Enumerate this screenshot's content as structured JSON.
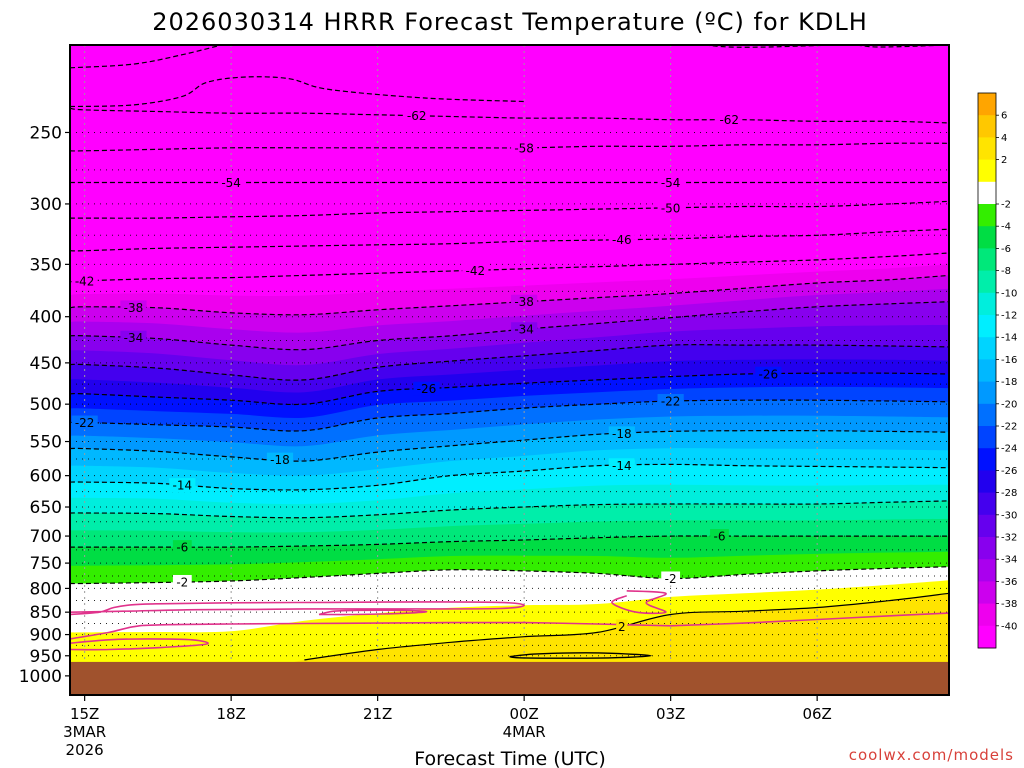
{
  "chart_data": {
    "type": "contour",
    "title": "2026030314 HRRR Forecast Temperature (ºC) for KDLH",
    "xlabel": "Forecast Time (UTC)",
    "ylabel": "",
    "credit": "coolwx.com/models",
    "y_axis": {
      "quantity": "pressure (hPa)",
      "scale": "log",
      "inverted": true,
      "range": [
        1050,
        200
      ],
      "ticks": [
        250,
        300,
        350,
        400,
        450,
        500,
        550,
        600,
        650,
        700,
        750,
        800,
        850,
        900,
        950,
        1000
      ],
      "tick_labels": [
        "250",
        "300",
        "350",
        "400",
        "450",
        "500",
        "550",
        "600",
        "650",
        "700",
        "750",
        "800",
        "850",
        "900",
        "950",
        "1000"
      ]
    },
    "x_axis": {
      "quantity": "forecast hour",
      "range": [
        -0.3,
        17.7
      ],
      "ticks": [
        {
          "hour": 0,
          "label": "15Z",
          "sub1": "3MAR",
          "sub2": "2026"
        },
        {
          "hour": 3,
          "label": "18Z",
          "sub1": "",
          "sub2": ""
        },
        {
          "hour": 6,
          "label": "21Z",
          "sub1": "",
          "sub2": ""
        },
        {
          "hour": 9,
          "label": "00Z",
          "sub1": "4MAR",
          "sub2": ""
        },
        {
          "hour": 12,
          "label": "03Z",
          "sub1": "",
          "sub2": ""
        },
        {
          "hour": 15,
          "label": "06Z",
          "sub1": "",
          "sub2": ""
        }
      ]
    },
    "grid": true,
    "grid_pressure_levels": [
      250,
      275,
      300,
      325,
      350,
      375,
      400,
      425,
      450,
      475,
      500,
      525,
      550,
      575,
      600,
      625,
      650,
      675,
      700,
      725,
      750,
      775,
      800,
      825,
      850,
      875,
      900,
      925,
      950,
      975,
      1000
    ],
    "ground_pressure": 965,
    "colorbar": {
      "placement": "right",
      "labels": [
        "6",
        "4",
        "2",
        "-2",
        "-4",
        "-6",
        "-8",
        "-10",
        "-12",
        "-14",
        "-16",
        "-18",
        "-20",
        "-22",
        "-24",
        "-26",
        "-28",
        "-30",
        "-32",
        "-34",
        "-36",
        "-38",
        "-40"
      ],
      "colors": [
        "#ffa500",
        "#ffc800",
        "#ffe400",
        "#ffff00",
        "#ffffff",
        "#33ee00",
        "#00dd44",
        "#00e87a",
        "#00eeaa",
        "#00eedd",
        "#00eeff",
        "#00d4ff",
        "#00b8ff",
        "#0099ff",
        "#0070ff",
        "#0044ff",
        "#0011ff",
        "#2200ee",
        "#4400ee",
        "#6600ee",
        "#8800ee",
        "#aa00ee",
        "#cc00ee",
        "#ee00ee",
        "#ff00ff"
      ],
      "boundaries": [
        8,
        6,
        4,
        2,
        0,
        -2,
        -4,
        -6,
        -8,
        -10,
        -12,
        -14,
        -16,
        -18,
        -20,
        -22,
        -24,
        -26,
        -28,
        -30,
        -32,
        -34,
        -36,
        -38,
        -40,
        -42
      ]
    },
    "hours": [
      -0.3,
      0,
      1.5,
      3,
      4.5,
      6,
      7.5,
      9,
      10.5,
      12,
      13.5,
      15,
      16.5,
      17.7
    ],
    "contours": [
      {
        "t": -62,
        "p": [
          235,
          236,
          237,
          238,
          238,
          239,
          240,
          241,
          241,
          242,
          242,
          243,
          243,
          244
        ]
      },
      {
        "t": -58,
        "p": [
          262,
          262,
          261,
          260,
          260,
          260,
          260,
          260,
          259,
          259,
          258,
          258,
          257,
          257
        ]
      },
      {
        "t": -54,
        "p": [
          284,
          284,
          284,
          284,
          284,
          284,
          284,
          284,
          284,
          284,
          284,
          284,
          284,
          284
        ]
      },
      {
        "t": -50,
        "p": [
          311,
          311,
          311,
          310,
          309,
          307,
          306,
          305,
          304,
          303,
          302,
          302,
          300,
          298
        ]
      },
      {
        "t": -46,
        "p": [
          338,
          338,
          336,
          335,
          334,
          333,
          332,
          330,
          329,
          328,
          326,
          325,
          322,
          320
        ]
      },
      {
        "t": -42,
        "p": [
          366,
          365,
          363,
          362,
          360,
          358,
          356,
          354,
          352,
          350,
          348,
          346,
          343,
          340
        ]
      },
      {
        "t": -38,
        "p": [
          391,
          390,
          391,
          396,
          398,
          393,
          389,
          385,
          381,
          377,
          372,
          367,
          364,
          360
        ]
      },
      {
        "t": -34,
        "p": [
          420,
          420,
          423,
          430,
          435,
          425,
          420,
          413,
          407,
          401,
          395,
          390,
          387,
          385
        ]
      },
      {
        "t": -30,
        "p": [
          452,
          452,
          456,
          464,
          470,
          455,
          448,
          442,
          436,
          430,
          430,
          430,
          431,
          432
        ]
      },
      {
        "t": -26,
        "p": [
          487,
          487,
          491,
          495,
          500,
          484,
          479,
          474,
          470,
          466,
          463,
          462,
          462,
          463
        ]
      },
      {
        "t": -22,
        "p": [
          524,
          524,
          527,
          530,
          535,
          518,
          512,
          505,
          500,
          496,
          495,
          495,
          496,
          497
        ]
      },
      {
        "t": -18,
        "p": [
          560,
          560,
          564,
          572,
          578,
          565,
          556,
          548,
          540,
          536,
          535,
          535,
          536,
          537
        ]
      },
      {
        "t": -14,
        "p": [
          610,
          610,
          612,
          620,
          622,
          615,
          600,
          593,
          585,
          583,
          585,
          586,
          587,
          588
        ]
      },
      {
        "t": -10,
        "p": [
          660,
          660,
          661,
          666,
          668,
          663,
          655,
          650,
          646,
          645,
          645,
          645,
          642,
          640
        ]
      },
      {
        "t": -6,
        "p": [
          720,
          720,
          720,
          720,
          718,
          715,
          710,
          707,
          703,
          700,
          700,
          700,
          700,
          700
        ]
      },
      {
        "t": -2,
        "p": [
          790,
          790,
          788,
          785,
          778,
          770,
          763,
          765,
          770,
          780,
          772,
          765,
          760,
          757
        ]
      },
      {
        "t": 2,
        "p": [
          1000,
          1000,
          1000,
          1000,
          960,
          935,
          918,
          905,
          895,
          855,
          848,
          840,
          825,
          810
        ]
      }
    ],
    "label_positions": [
      {
        "t": -62,
        "h": 6.8
      },
      {
        "t": -62,
        "h": 13.2
      },
      {
        "t": -58,
        "h": 9.0
      },
      {
        "t": -54,
        "h": 3.0
      },
      {
        "t": -54,
        "h": 12.0
      },
      {
        "t": -50,
        "h": 12.0
      },
      {
        "t": -46,
        "h": 11.0
      },
      {
        "t": -42,
        "h": 0.0
      },
      {
        "t": -42,
        "h": 8.0
      },
      {
        "t": -38,
        "h": 1.0
      },
      {
        "t": -38,
        "h": 9.0
      },
      {
        "t": -34,
        "h": 1.0
      },
      {
        "t": -34,
        "h": 9.0
      },
      {
        "t": -26,
        "h": 7.0
      },
      {
        "t": -26,
        "h": 14.0
      },
      {
        "t": -22,
        "h": 0.0
      },
      {
        "t": -22,
        "h": 12.0
      },
      {
        "t": -18,
        "h": 4.0
      },
      {
        "t": -18,
        "h": 11.0
      },
      {
        "t": -14,
        "h": 2.0
      },
      {
        "t": -14,
        "h": 11.0
      },
      {
        "t": -6,
        "h": 2.0
      },
      {
        "t": -6,
        "h": 13.0
      },
      {
        "t": -2,
        "h": 2.0
      },
      {
        "t": -2,
        "h": 12.0
      },
      {
        "t": 2,
        "h": 11.0
      }
    ],
    "zero_contours": [
      [
        [
          -0.3,
          910
        ],
        [
          0.5,
          895
        ],
        [
          1,
          882
        ],
        [
          1.5,
          878
        ],
        [
          3,
          876
        ],
        [
          4.5,
          875
        ],
        [
          6,
          874
        ],
        [
          7.5,
          873
        ],
        [
          9,
          873
        ],
        [
          10.5,
          876
        ],
        [
          11.2,
          878
        ],
        [
          12,
          880
        ]
      ],
      [
        [
          12,
          880
        ],
        [
          13.5,
          874
        ],
        [
          15,
          866
        ],
        [
          16.5,
          858
        ],
        [
          17.7,
          852
        ]
      ],
      [
        [
          -0.3,
          855
        ],
        [
          0.3,
          850
        ],
        [
          0.6,
          840
        ],
        [
          1,
          834
        ],
        [
          1.5,
          832
        ],
        [
          3,
          830
        ],
        [
          5,
          829
        ],
        [
          7,
          828
        ],
        [
          8.5,
          829
        ],
        [
          9,
          835
        ],
        [
          8.5,
          842
        ],
        [
          6.5,
          843
        ],
        [
          4.5,
          843
        ],
        [
          3.5,
          844
        ],
        [
          2,
          845
        ],
        [
          0.8,
          848
        ],
        [
          -0.3,
          850
        ]
      ],
      [
        [
          4.8,
          855
        ],
        [
          5.1,
          848
        ],
        [
          5.6,
          846
        ],
        [
          6.5,
          846
        ],
        [
          7,
          849
        ],
        [
          6.4,
          853
        ],
        [
          5.5,
          855
        ],
        [
          4.8,
          855
        ]
      ],
      [
        [
          -0.3,
          935
        ],
        [
          0.5,
          935
        ],
        [
          1.6,
          930
        ],
        [
          2.5,
          922
        ],
        [
          2.2,
          912
        ],
        [
          1.3,
          910
        ],
        [
          0.5,
          912
        ],
        [
          -0.3,
          920
        ]
      ],
      [
        [
          11.1,
          805
        ],
        [
          11.9,
          810
        ],
        [
          11.5,
          830
        ],
        [
          11.9,
          850
        ],
        [
          11.3,
          850
        ],
        [
          10.8,
          830
        ],
        [
          11.1,
          815
        ]
      ],
      [
        [
          17.7,
          795
        ],
        [
          17.7,
          790
        ]
      ]
    ],
    "closed_2_contour": [
      [
        8.7,
        952
      ],
      [
        9.2,
        946
      ],
      [
        10,
        943
      ],
      [
        10.8,
        944
      ],
      [
        11.6,
        950
      ],
      [
        10.8,
        955
      ],
      [
        9.8,
        956
      ],
      [
        8.9,
        955
      ]
    ]
  }
}
